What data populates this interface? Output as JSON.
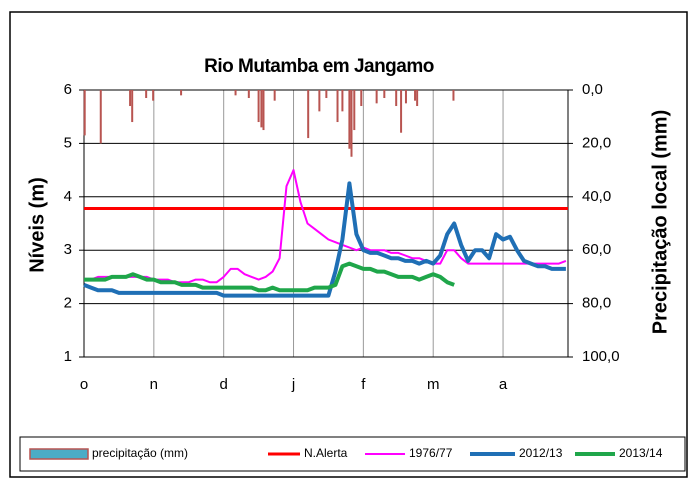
{
  "chart_data": {
    "type": "line",
    "title": "Rio Mutamba em Jangamo",
    "y_label": "Níveis (m)",
    "y2_label": "Precipitação local  (mm)",
    "xlim": [
      0,
      6.93
    ],
    "xticks": [
      {
        "value": 0,
        "label": "o"
      },
      {
        "value": 1,
        "label": "n"
      },
      {
        "value": 2,
        "label": "d"
      },
      {
        "value": 3,
        "label": "j"
      },
      {
        "value": 4,
        "label": "f"
      },
      {
        "value": 5,
        "label": "m"
      },
      {
        "value": 6,
        "label": "a"
      }
    ],
    "ylim": [
      1,
      6
    ],
    "yticks": [
      1,
      2,
      3,
      4,
      5,
      6
    ],
    "y2lim": [
      0,
      100
    ],
    "y2_inverted": true,
    "y2ticks": [
      {
        "value": 0,
        "label": "0,0"
      },
      {
        "value": 20,
        "label": "20,0"
      },
      {
        "value": 40,
        "label": "40,0"
      },
      {
        "value": 60,
        "label": "60,0"
      },
      {
        "value": 80,
        "label": "80,0"
      },
      {
        "value": 100,
        "label": "100,0"
      }
    ],
    "grid": true,
    "legend": "bottom",
    "x": [
      0,
      0.1,
      0.2,
      0.3,
      0.4,
      0.5,
      0.6,
      0.7,
      0.8,
      0.9,
      1,
      1.1,
      1.2,
      1.3,
      1.4,
      1.5,
      1.6,
      1.7,
      1.8,
      1.9,
      2,
      2.1,
      2.2,
      2.3,
      2.4,
      2.5,
      2.6,
      2.7,
      2.8,
      2.9,
      3,
      3.1,
      3.2,
      3.3,
      3.4,
      3.5,
      3.6,
      3.7,
      3.8,
      3.9,
      4,
      4.1,
      4.2,
      4.3,
      4.4,
      4.5,
      4.6,
      4.7,
      4.8,
      4.9,
      5,
      5.1,
      5.2,
      5.3,
      5.4,
      5.5,
      5.6,
      5.7,
      5.8,
      5.9,
      6,
      6.1,
      6.2,
      6.3,
      6.4,
      6.5,
      6.6,
      6.7,
      6.8,
      6.9
    ],
    "series": [
      {
        "name": "precipitação (mm)",
        "type": "bar",
        "axis": "y2",
        "color": "#b85450",
        "x": [
          0.01,
          0.24,
          0.66,
          0.69,
          0.89,
          0.99,
          1.39,
          2.17,
          2.36,
          2.5,
          2.54,
          2.57,
          2.73,
          3.21,
          3.37,
          3.47,
          3.63,
          3.7,
          3.8,
          3.83,
          3.87,
          3.97,
          4.19,
          4.3,
          4.47,
          4.54,
          4.61,
          4.74,
          4.77,
          5.29
        ],
        "values": [
          17,
          20,
          6,
          12,
          3,
          4,
          2,
          2,
          3,
          12,
          14,
          15,
          4,
          18,
          8,
          3,
          12,
          8,
          22,
          25,
          15,
          6,
          5,
          3,
          6,
          16,
          5,
          4,
          6,
          4
        ]
      },
      {
        "name": "N.Alerta",
        "type": "line",
        "color": "#ff0000",
        "width": 3,
        "x": [
          0,
          6.93
        ],
        "values": [
          3.78,
          3.78
        ]
      },
      {
        "name": "1976/77",
        "type": "line",
        "color": "#ff00ff",
        "width": 2,
        "values": [
          2.45,
          2.45,
          2.5,
          2.5,
          2.5,
          2.5,
          2.5,
          2.5,
          2.5,
          2.5,
          2.45,
          2.45,
          2.45,
          2.4,
          2.4,
          2.4,
          2.45,
          2.45,
          2.4,
          2.4,
          2.5,
          2.65,
          2.65,
          2.55,
          2.5,
          2.45,
          2.5,
          2.6,
          2.85,
          4.2,
          4.5,
          3.9,
          3.5,
          3.4,
          3.3,
          3.2,
          3.15,
          3.1,
          3.05,
          3.0,
          3.05,
          3.0,
          3.0,
          3.0,
          2.95,
          2.95,
          2.9,
          2.85,
          2.85,
          2.8,
          2.75,
          2.75,
          3.0,
          3.0,
          2.85,
          2.75,
          2.75,
          2.75,
          2.75,
          2.75,
          2.75,
          2.75,
          2.75,
          2.75,
          2.75,
          2.75,
          2.75,
          2.75,
          2.75,
          2.8
        ]
      },
      {
        "name": "2012/13",
        "type": "line",
        "color": "#1f6fb5",
        "width": 4,
        "values": [
          2.35,
          2.3,
          2.25,
          2.25,
          2.25,
          2.2,
          2.2,
          2.2,
          2.2,
          2.2,
          2.2,
          2.2,
          2.2,
          2.2,
          2.2,
          2.2,
          2.2,
          2.2,
          2.2,
          2.2,
          2.15,
          2.15,
          2.15,
          2.15,
          2.15,
          2.15,
          2.15,
          2.15,
          2.15,
          2.15,
          2.15,
          2.15,
          2.15,
          2.15,
          2.15,
          2.15,
          2.6,
          3.2,
          4.25,
          3.3,
          3.0,
          2.95,
          2.95,
          2.9,
          2.85,
          2.85,
          2.8,
          2.8,
          2.75,
          2.8,
          2.75,
          2.9,
          3.3,
          3.5,
          3.1,
          2.8,
          3.0,
          3.0,
          2.85,
          3.3,
          3.2,
          3.25,
          3.0,
          2.8,
          2.75,
          2.7,
          2.7,
          2.65,
          2.65,
          2.65
        ]
      },
      {
        "name": "2013/14",
        "type": "line",
        "color": "#1fa64a",
        "width": 4,
        "values": [
          2.45,
          2.45,
          2.45,
          2.45,
          2.5,
          2.5,
          2.5,
          2.55,
          2.5,
          2.45,
          2.45,
          2.4,
          2.4,
          2.4,
          2.35,
          2.35,
          2.35,
          2.3,
          2.3,
          2.3,
          2.3,
          2.3,
          2.3,
          2.3,
          2.3,
          2.25,
          2.25,
          2.3,
          2.25,
          2.25,
          2.25,
          2.25,
          2.25,
          2.3,
          2.3,
          2.3,
          2.35,
          2.7,
          2.75,
          2.7,
          2.65,
          2.65,
          2.6,
          2.6,
          2.55,
          2.5,
          2.5,
          2.5,
          2.45,
          2.5,
          2.55,
          2.5,
          2.4,
          2.35,
          null,
          null,
          null,
          null,
          null,
          null,
          null,
          null,
          null,
          null,
          null,
          null,
          null,
          null,
          null,
          null
        ]
      }
    ]
  }
}
